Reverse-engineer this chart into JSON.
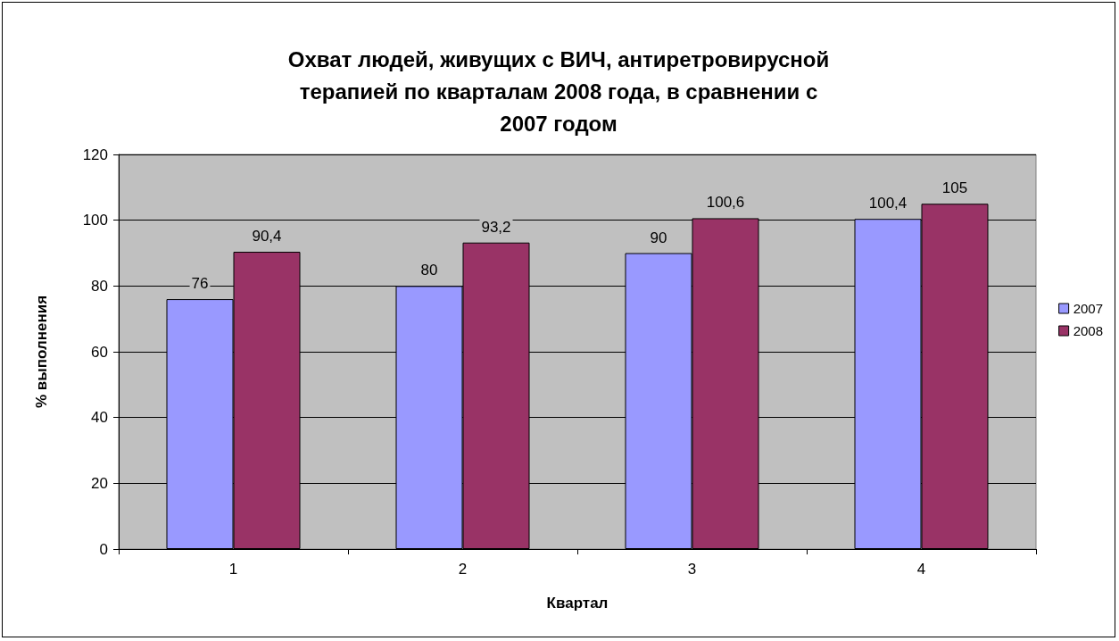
{
  "chart_data": {
    "type": "bar",
    "title": "Охват людей, живущих с ВИЧ, антиретровирусной терапией по кварталам 2008 года, в сравнении с 2007 годом",
    "xlabel": "Квартал",
    "ylabel": "% выполнения",
    "categories": [
      "1",
      "2",
      "3",
      "4"
    ],
    "series": [
      {
        "name": "2007",
        "color": "#9999ff",
        "values": [
          76,
          80,
          90,
          100.4
        ],
        "value_labels": [
          "76",
          "80",
          "90",
          "100,4"
        ]
      },
      {
        "name": "2008",
        "color": "#993366",
        "values": [
          90.4,
          93.2,
          100.6,
          105
        ],
        "value_labels": [
          "90,4",
          "93,2",
          "100,6",
          "105"
        ]
      }
    ],
    "ylim": [
      0,
      120
    ],
    "yticks": [
      0,
      20,
      40,
      60,
      80,
      100,
      120
    ],
    "grid": "y",
    "legend": "right"
  }
}
